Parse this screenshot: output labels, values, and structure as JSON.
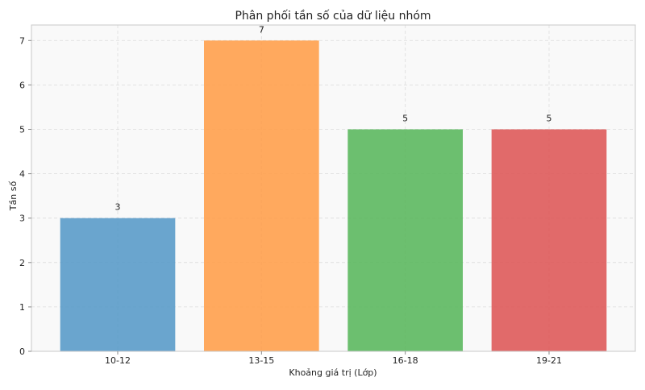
{
  "chart_data": {
    "type": "bar",
    "title": "Phân phối tần số của dữ liệu nhóm",
    "xlabel": "Khoảng giá trị (Lớp)",
    "ylabel": "Tần số",
    "categories": [
      "10-12",
      "13-15",
      "16-18",
      "19-21"
    ],
    "values": [
      3,
      7,
      5,
      5
    ],
    "data_labels": [
      "3",
      "7",
      "5",
      "5"
    ],
    "colors": [
      "#5a9bc9",
      "#ffa04c",
      "#5cb85f",
      "#de5a5a"
    ],
    "ylim": [
      0,
      7.35
    ],
    "yticks": [
      0,
      1,
      2,
      3,
      4,
      5,
      6,
      7
    ],
    "grid": true,
    "grid_style": "dashed",
    "plot_background": "#f9f9f9",
    "legend": "none"
  }
}
